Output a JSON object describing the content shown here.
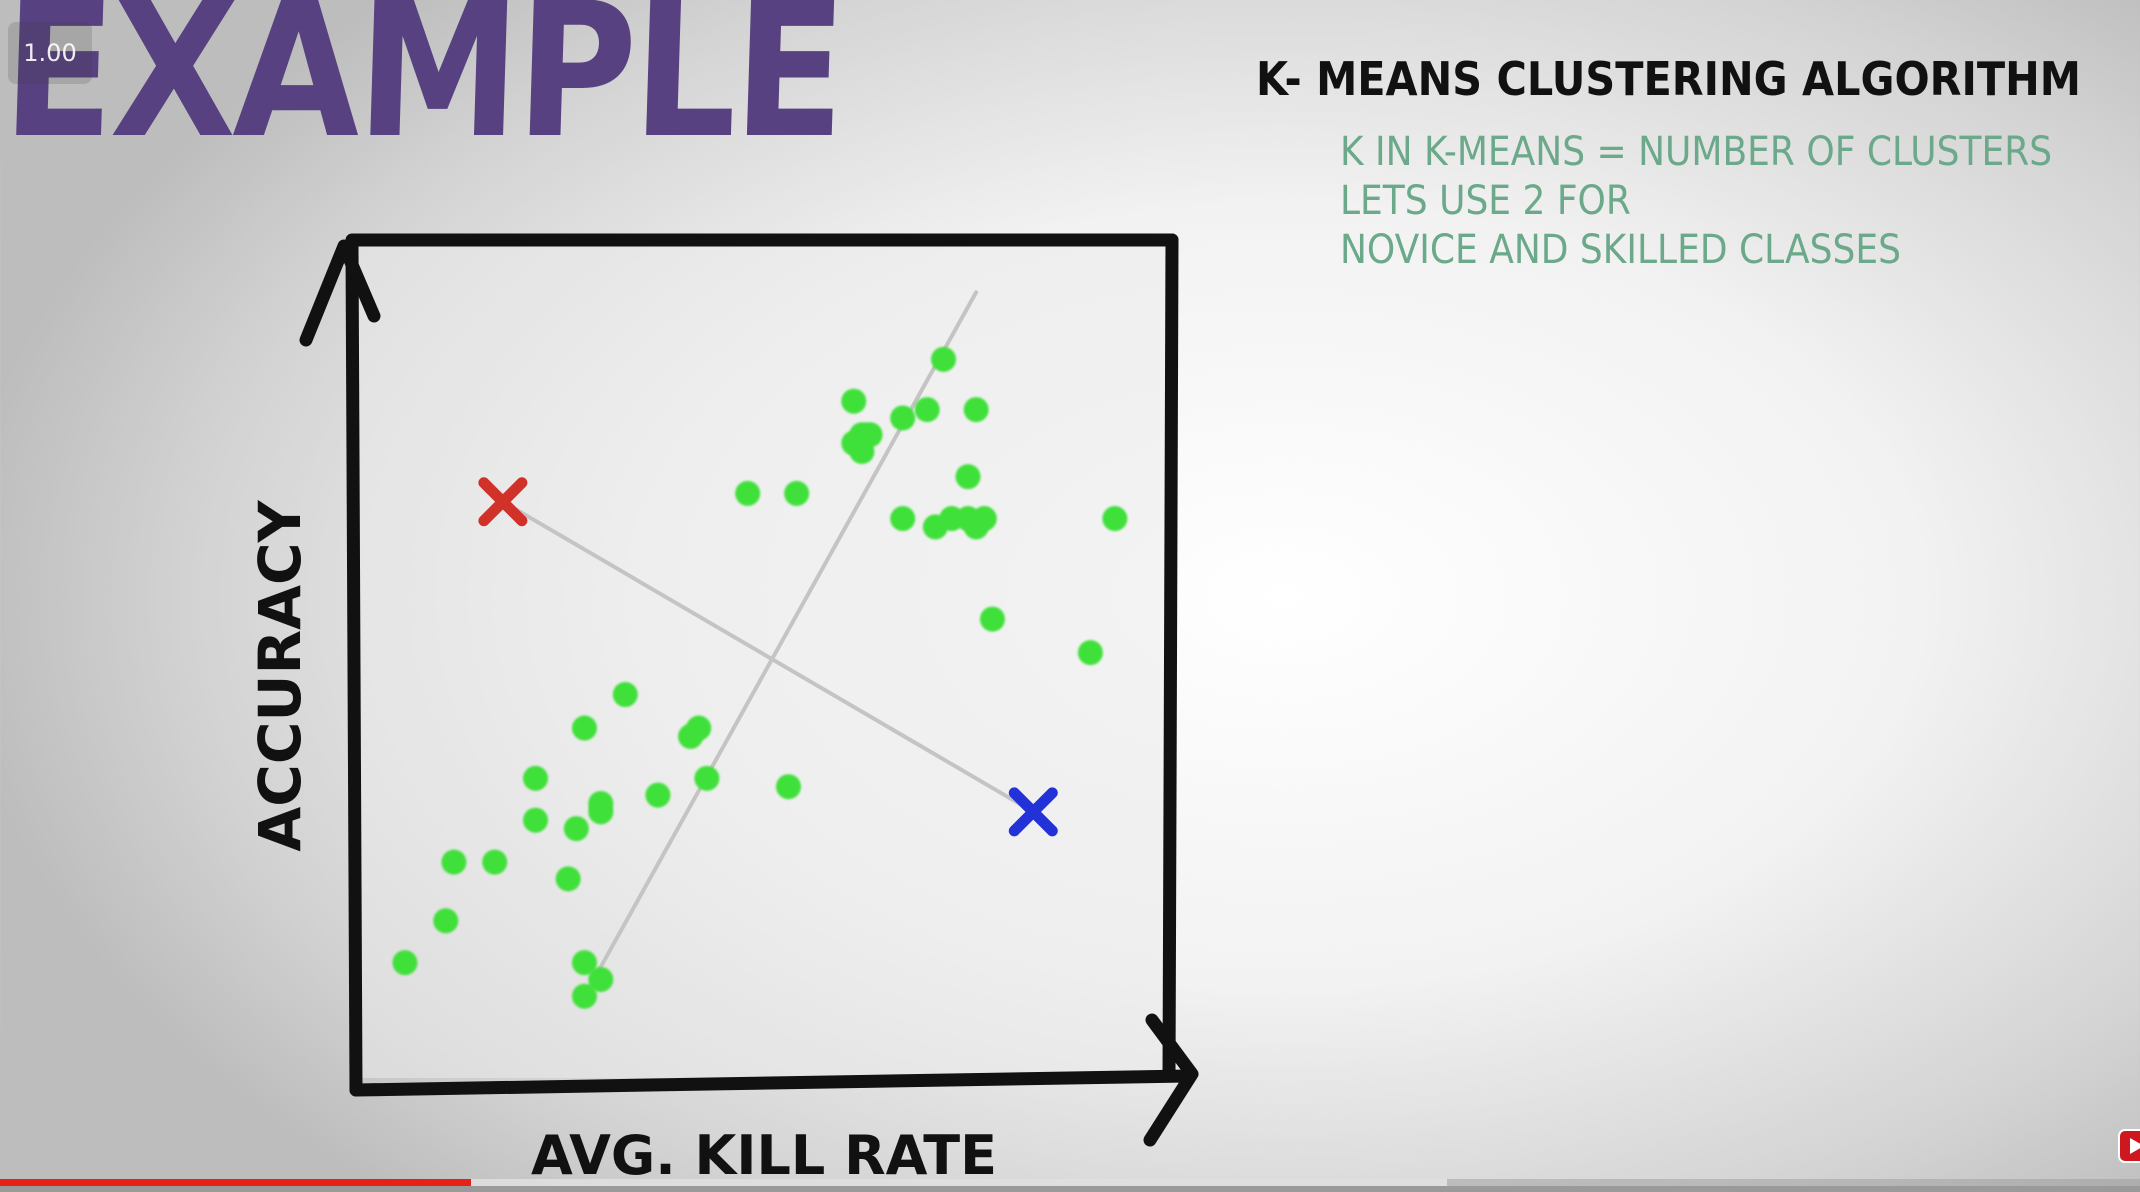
{
  "player": {
    "speed_label": "1.00",
    "progress_played": 0.22,
    "progress_buffered": 0.676,
    "logo_icon": "youtube-icon"
  },
  "slide": {
    "title": "EXAMPLE",
    "heading": "K- MEANS CLUSTERING ALGORITHM",
    "notes": [
      "K IN K-MEANS = NUMBER OF CLUSTERS",
      "LETS USE 2 FOR",
      "NOVICE AND SKILLED CLASSES"
    ],
    "colors": {
      "title": "#574180",
      "notes": "#6ba98a",
      "points": "#3fe03a",
      "centroid_1": "#d0322a",
      "centroid_2": "#2331d8"
    }
  },
  "chart_data": {
    "type": "scatter",
    "xlabel": "AVG. KILL RATE",
    "ylabel": "ACCURACY",
    "xlim": [
      0,
      100
    ],
    "ylim": [
      0,
      100
    ],
    "grid": false,
    "points": [
      [
        72,
        86
      ],
      [
        61,
        81
      ],
      [
        67,
        79
      ],
      [
        70,
        80
      ],
      [
        76,
        80
      ],
      [
        62,
        77
      ],
      [
        62,
        75
      ],
      [
        63,
        77
      ],
      [
        61,
        76
      ],
      [
        75,
        72
      ],
      [
        48,
        70
      ],
      [
        54,
        70
      ],
      [
        67,
        67
      ],
      [
        73,
        67
      ],
      [
        75,
        67
      ],
      [
        77,
        67
      ],
      [
        76,
        66
      ],
      [
        71,
        66
      ],
      [
        93,
        67
      ],
      [
        78,
        55
      ],
      [
        90,
        51
      ],
      [
        33,
        46
      ],
      [
        28,
        42
      ],
      [
        41,
        41
      ],
      [
        42,
        42
      ],
      [
        53,
        35
      ],
      [
        22,
        36
      ],
      [
        30,
        33
      ],
      [
        30,
        32
      ],
      [
        37,
        34
      ],
      [
        43,
        36
      ],
      [
        22,
        31
      ],
      [
        12,
        26
      ],
      [
        27,
        30
      ],
      [
        17,
        26
      ],
      [
        26,
        24
      ],
      [
        11,
        19
      ],
      [
        6,
        14
      ],
      [
        28,
        14
      ],
      [
        30,
        12
      ],
      [
        28,
        10
      ]
    ],
    "centroids": [
      {
        "label": "centroid-red",
        "x": 18,
        "y": 69,
        "color": "#d0322a"
      },
      {
        "label": "centroid-blue",
        "x": 83,
        "y": 32,
        "color": "#2331d8"
      }
    ],
    "connector": {
      "from": [
        18,
        69
      ],
      "to": [
        83,
        32
      ]
    },
    "boundary": {
      "from": [
        28,
        10
      ],
      "to": [
        76,
        94
      ]
    }
  }
}
